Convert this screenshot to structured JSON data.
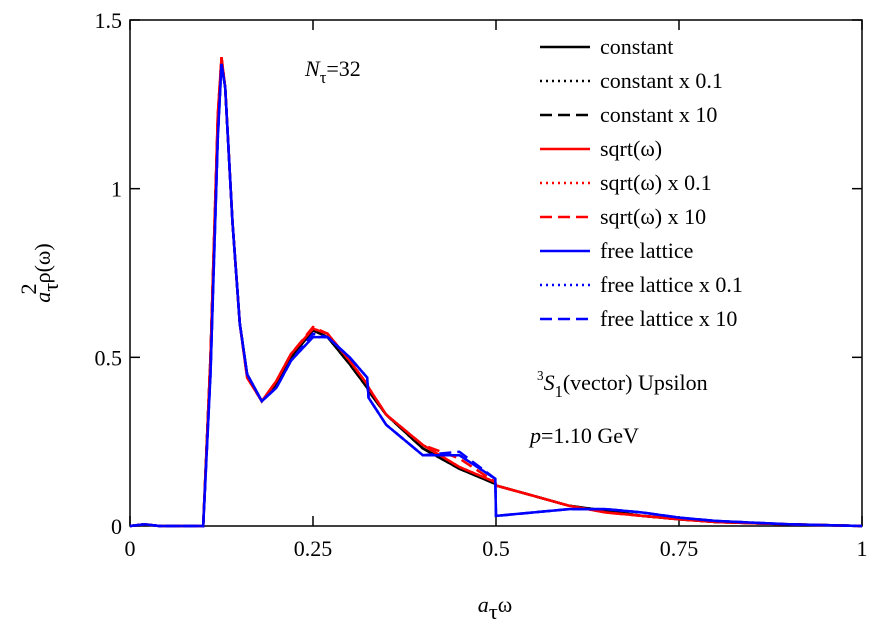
{
  "chart_data": {
    "type": "line",
    "x_label": {
      "base": "a",
      "sub": "τ",
      "rest": "ω"
    },
    "y_label": {
      "base": "a",
      "sub": "τ",
      "sup": "2",
      "rest": "ρ(ω)"
    },
    "annotations": [
      {
        "base": "N",
        "sub": "τ",
        "rest": "=32"
      },
      {
        "sup": "3",
        "base": "S",
        "sub": "1",
        "rest": "(vector) Upsilon"
      },
      {
        "base": "p",
        "rest": "=1.10 GeV"
      }
    ],
    "xlim": [
      0,
      1
    ],
    "ylim": [
      0,
      1.5
    ],
    "xticks": [
      0,
      0.25,
      0.5,
      0.75,
      1
    ],
    "yticks": [
      0,
      0.5,
      1,
      1.5
    ],
    "legend": "top-right",
    "x": [
      0,
      0.02,
      0.04,
      0.05,
      0.09,
      0.1,
      0.11,
      0.12,
      0.125,
      0.13,
      0.14,
      0.15,
      0.16,
      0.18,
      0.2,
      0.22,
      0.25,
      0.27,
      0.3,
      0.324,
      0.326,
      0.35,
      0.4,
      0.45,
      0.499,
      0.5,
      0.55,
      0.6,
      0.65,
      0.7,
      0.75,
      0.8,
      0.9,
      1.0
    ],
    "series": [
      {
        "name": "constant",
        "color": "#000000",
        "dash": "solid",
        "values": [
          0,
          0.005,
          0,
          0,
          0,
          0,
          0.5,
          1.2,
          1.38,
          1.3,
          0.9,
          0.6,
          0.45,
          0.37,
          0.42,
          0.5,
          0.58,
          0.56,
          0.48,
          0.41,
          0.4,
          0.33,
          0.23,
          0.17,
          0.125,
          0.12,
          0.09,
          0.06,
          0.045,
          0.03,
          0.02,
          0.012,
          0.005,
          0
        ]
      },
      {
        "name": "constant x 0.1",
        "color": "#000000",
        "dash": "dotted",
        "values": [
          0,
          0.005,
          0,
          0,
          0,
          0,
          0.5,
          1.2,
          1.38,
          1.3,
          0.9,
          0.6,
          0.45,
          0.37,
          0.42,
          0.5,
          0.58,
          0.56,
          0.48,
          0.41,
          0.4,
          0.33,
          0.23,
          0.17,
          0.125,
          0.12,
          0.09,
          0.06,
          0.045,
          0.03,
          0.02,
          0.012,
          0.005,
          0
        ]
      },
      {
        "name": "constant x 10",
        "color": "#000000",
        "dash": "dashed",
        "values": [
          0,
          0.005,
          0,
          0,
          0,
          0,
          0.5,
          1.2,
          1.38,
          1.3,
          0.9,
          0.6,
          0.45,
          0.37,
          0.42,
          0.5,
          0.58,
          0.56,
          0.48,
          0.41,
          0.4,
          0.33,
          0.23,
          0.17,
          0.125,
          0.12,
          0.09,
          0.06,
          0.045,
          0.03,
          0.02,
          0.012,
          0.005,
          0
        ]
      },
      {
        "name": "sqrt(ω)",
        "color": "#ff0000",
        "dash": "solid",
        "values": [
          0,
          0.005,
          0,
          0,
          0,
          0,
          0.5,
          1.22,
          1.39,
          1.3,
          0.9,
          0.6,
          0.44,
          0.37,
          0.43,
          0.51,
          0.585,
          0.57,
          0.49,
          0.42,
          0.41,
          0.33,
          0.24,
          0.175,
          0.13,
          0.12,
          0.09,
          0.06,
          0.04,
          0.03,
          0.02,
          0.012,
          0.005,
          0
        ]
      },
      {
        "name": "sqrt(ω) x 0.1",
        "color": "#ff0000",
        "dash": "dotted",
        "values": [
          0,
          0.005,
          0,
          0,
          0,
          0,
          0.5,
          1.22,
          1.39,
          1.3,
          0.9,
          0.6,
          0.44,
          0.37,
          0.43,
          0.51,
          0.585,
          0.57,
          0.49,
          0.42,
          0.41,
          0.33,
          0.24,
          0.175,
          0.13,
          0.12,
          0.09,
          0.06,
          0.04,
          0.03,
          0.02,
          0.012,
          0.005,
          0
        ]
      },
      {
        "name": "sqrt(ω) x 10",
        "color": "#ff0000",
        "dash": "dashed",
        "values": [
          0,
          0.005,
          0,
          0,
          0,
          0,
          0.5,
          1.22,
          1.39,
          1.3,
          0.9,
          0.6,
          0.44,
          0.37,
          0.43,
          0.51,
          0.59,
          0.57,
          0.49,
          0.42,
          0.41,
          0.33,
          0.24,
          0.2,
          0.13,
          0.12,
          0.09,
          0.06,
          0.04,
          0.03,
          0.02,
          0.012,
          0.005,
          0
        ]
      },
      {
        "name": "free lattice",
        "color": "#0000ff",
        "dash": "solid",
        "values": [
          0,
          0.005,
          0,
          0,
          0,
          0,
          0.45,
          1.15,
          1.37,
          1.3,
          0.9,
          0.6,
          0.45,
          0.37,
          0.41,
          0.49,
          0.56,
          0.56,
          0.5,
          0.44,
          0.38,
          0.3,
          0.21,
          0.21,
          0.14,
          0.03,
          0.04,
          0.05,
          0.05,
          0.04,
          0.025,
          0.015,
          0.005,
          0
        ]
      },
      {
        "name": "free lattice x 0.1",
        "color": "#0000ff",
        "dash": "dotted",
        "values": [
          0,
          0.005,
          0,
          0,
          0,
          0,
          0.45,
          1.15,
          1.37,
          1.3,
          0.9,
          0.6,
          0.45,
          0.37,
          0.41,
          0.49,
          0.56,
          0.56,
          0.5,
          0.44,
          0.38,
          0.3,
          0.21,
          0.21,
          0.14,
          0.03,
          0.04,
          0.05,
          0.05,
          0.04,
          0.025,
          0.015,
          0.005,
          0
        ]
      },
      {
        "name": "free lattice x 10",
        "color": "#0000ff",
        "dash": "dashed",
        "values": [
          0,
          0.005,
          0,
          0,
          0,
          0,
          0.45,
          1.15,
          1.37,
          1.3,
          0.9,
          0.6,
          0.45,
          0.37,
          0.41,
          0.49,
          0.57,
          0.56,
          0.5,
          0.44,
          0.38,
          0.3,
          0.21,
          0.22,
          0.14,
          0.03,
          0.04,
          0.05,
          0.05,
          0.04,
          0.025,
          0.015,
          0.005,
          0
        ]
      }
    ]
  }
}
